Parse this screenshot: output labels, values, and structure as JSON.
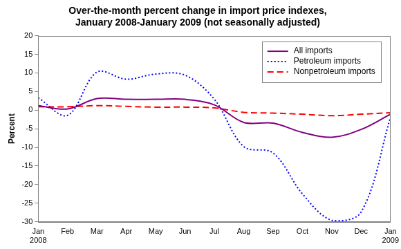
{
  "chart_data": {
    "type": "line",
    "title": [
      "Over-the-month percent change in import price indexes,",
      "January 2008-January 2009 (not seasonally adjusted)"
    ],
    "y_label": "Percent",
    "categories": [
      "Jan 2008",
      "Feb",
      "Mar",
      "Apr",
      "May",
      "Jun",
      "Jul",
      "Aug",
      "Sep",
      "Oct",
      "Nov",
      "Dec",
      "Jan 2009"
    ],
    "series": [
      {
        "name": "All imports",
        "color": "#800080",
        "line_style": "solid",
        "values": [
          1.2,
          0.3,
          3.1,
          2.9,
          2.9,
          2.9,
          1.4,
          -3.3,
          -3.5,
          -6.0,
          -7.3,
          -5.2,
          -1.1
        ]
      },
      {
        "name": "Petroleum imports",
        "color": "#0000ff",
        "line_style": "dotted",
        "values": [
          3.3,
          -1.4,
          10.2,
          8.3,
          9.7,
          9.4,
          2.9,
          -9.8,
          -11.5,
          -22.5,
          -29.6,
          -27.4,
          -2.0
        ]
      },
      {
        "name": "Nonpetroleum imports",
        "color": "#ff0000",
        "line_style": "dashed",
        "values": [
          0.9,
          0.9,
          1.2,
          1.0,
          0.8,
          0.8,
          0.6,
          -0.6,
          -0.8,
          -1.1,
          -1.5,
          -1.1,
          -0.7
        ]
      }
    ],
    "ylim": [
      -30,
      20
    ],
    "yticks": [
      -30,
      -25,
      -20,
      -15,
      -10,
      -5,
      0,
      5,
      10,
      15,
      20
    ],
    "grid": false,
    "legend": "upper right"
  }
}
